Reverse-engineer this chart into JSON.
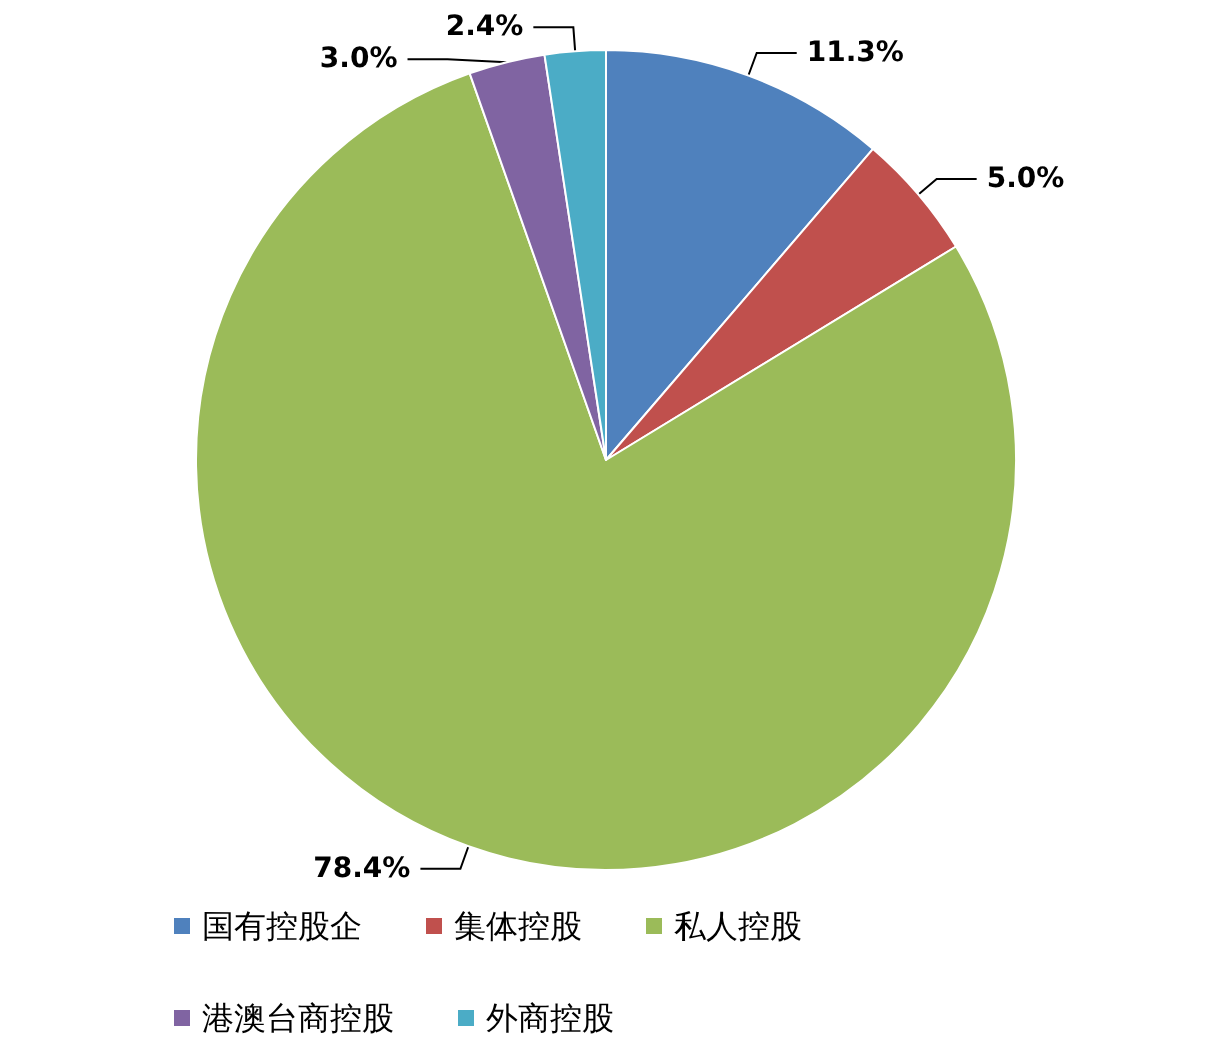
{
  "chart_data": {
    "type": "pie",
    "categories": [
      "国有控股企",
      "集体控股",
      "私人控股",
      "港澳台商控股",
      "外商控股"
    ],
    "values": [
      11.3,
      5.0,
      78.4,
      3.0,
      2.4
    ],
    "value_labels": [
      "11.3%",
      "5.0%",
      "78.4%",
      "3.0%",
      "2.4%"
    ],
    "colors": [
      "#4f81bd",
      "#c0504d",
      "#9bbb59",
      "#8064a2",
      "#4bacc6"
    ],
    "legend": "bottom"
  }
}
